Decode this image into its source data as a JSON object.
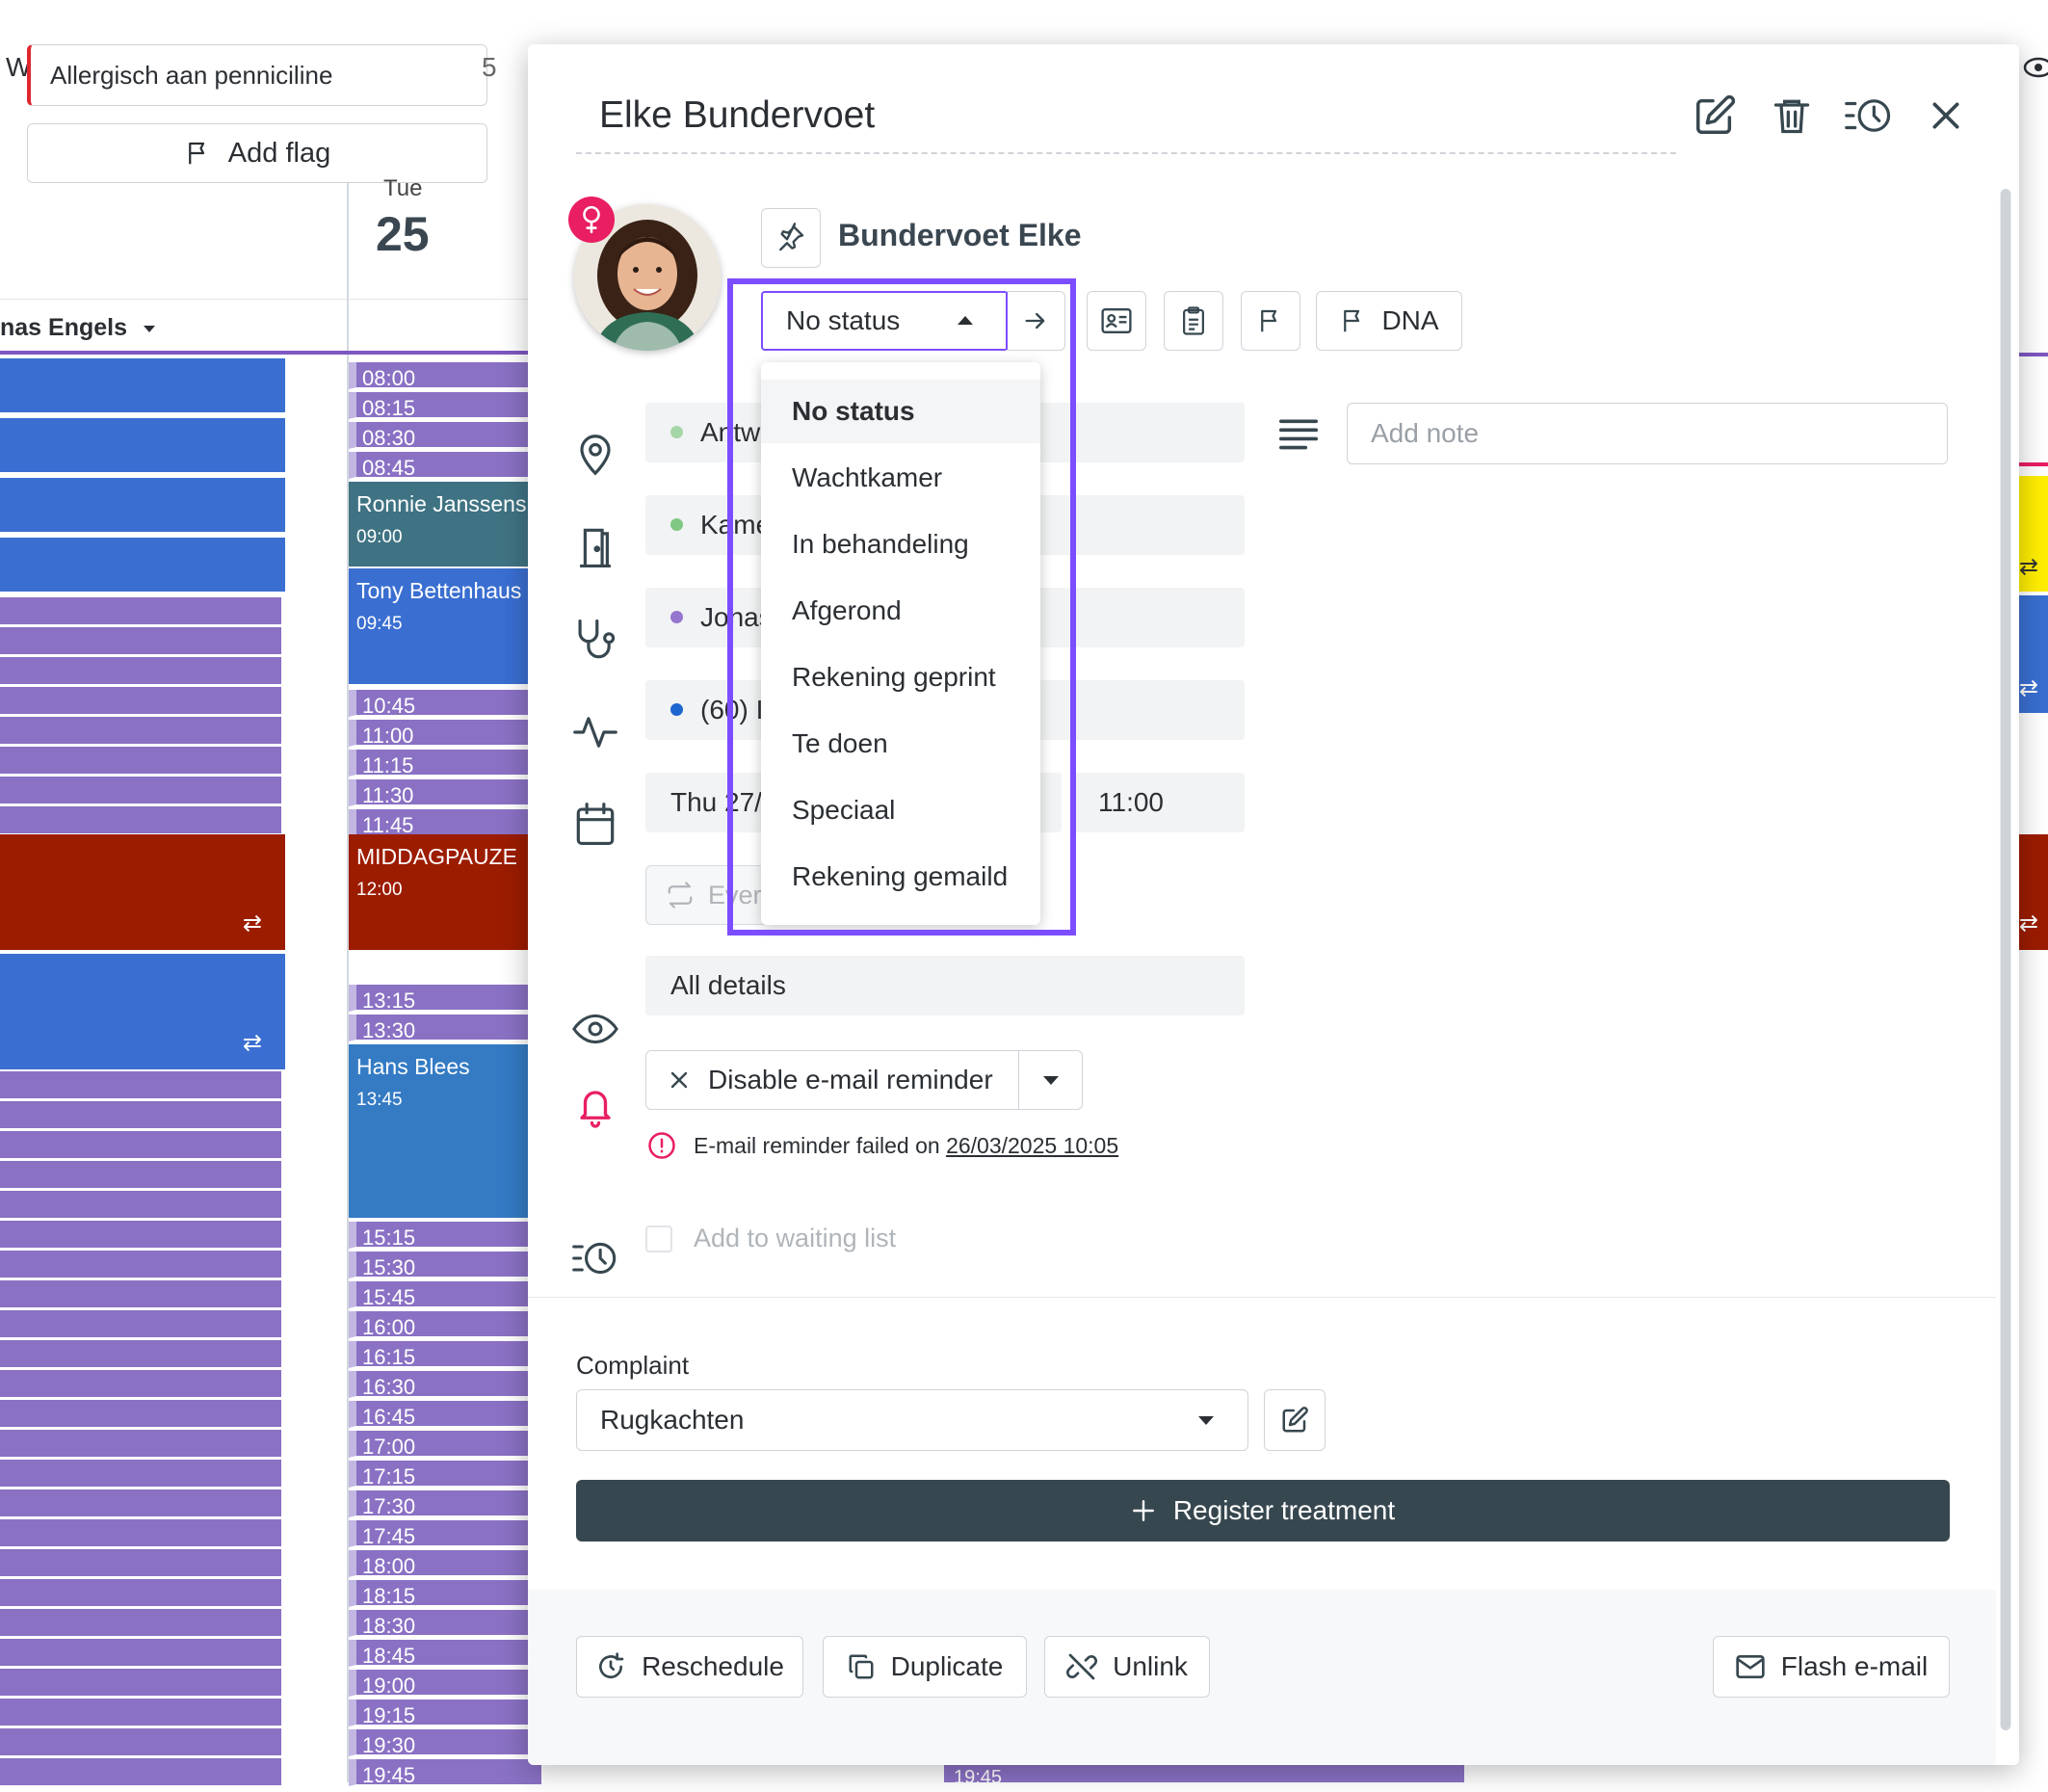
{
  "background_calendar": {
    "allergy_flag": "Allergisch aan penniciline",
    "w_letter": "W",
    "five_letter": "5",
    "add_flag_label": "Add flag",
    "day_name": "Tue",
    "day_number": "25",
    "practitioner": "nas Engels",
    "slots_top": [
      "08:00",
      "08:15",
      "08:30",
      "08:45"
    ],
    "slots_mid": [
      "10:45",
      "11:00",
      "11:15",
      "11:30",
      "11:45"
    ],
    "slots_after": [
      "13:15",
      "13:30"
    ],
    "slots_late": [
      "15:15",
      "15:30",
      "15:45",
      "16:00",
      "16:15",
      "16:30",
      "16:45",
      "17:00",
      "17:15",
      "17:30",
      "17:45",
      "18:00",
      "18:15",
      "18:30",
      "18:45",
      "19:00",
      "19:15",
      "19:30",
      "19:45"
    ],
    "bottom_slot": "19:45",
    "appointments": [
      {
        "name": "Ronnie Janssens",
        "time": "09:00"
      },
      {
        "name": "Tony Bettenhaus",
        "time": "09:45"
      },
      {
        "name": "MIDDAGPAUZE",
        "time": "12:00"
      },
      {
        "name": "Hans Blees",
        "time": "13:45"
      }
    ]
  },
  "modal": {
    "title": "Elke Bundervoet",
    "header_icons": [
      "edit-icon",
      "trash-icon",
      "history-icon",
      "close-icon"
    ],
    "patient_name": "Bundervoet Elke",
    "status": {
      "selected": "No status",
      "options": [
        "No status",
        "Wachtkamer",
        "In behandeling",
        "Afgerond",
        "Rekening geprint",
        "Te doen",
        "Speciaal",
        "Rekening gemaild"
      ]
    },
    "dna_label": "DNA",
    "fields": {
      "location": "Antwerpen",
      "room": "Kamer",
      "practitioner": "Jonas",
      "type": "(60) I",
      "date": "Thu 27/",
      "time": "11:00",
      "every_label": "Every",
      "visibility": "All details"
    },
    "dot_colors": {
      "location": "#a5d6a7",
      "room": "#81c784",
      "practitioner": "#9575cd",
      "type": "#1e66d0"
    },
    "note_placeholder": "Add note",
    "reminder_label": "Disable e-mail reminder",
    "reminder_failed_text": "E-mail reminder failed on",
    "reminder_failed_date": "26/03/2025 10:05",
    "waiting_list_label": "Add to waiting list",
    "complaint_label": "Complaint",
    "complaint_value": "Rugkachten",
    "register_label": "Register treatment",
    "footer": {
      "reschedule": "Reschedule",
      "duplicate": "Duplicate",
      "unlink": "Unlink",
      "flash_email": "Flash e-mail"
    }
  },
  "colors": {
    "accent": "#7c4dff",
    "register_bg": "#37474f",
    "alert": "#e91e63"
  }
}
